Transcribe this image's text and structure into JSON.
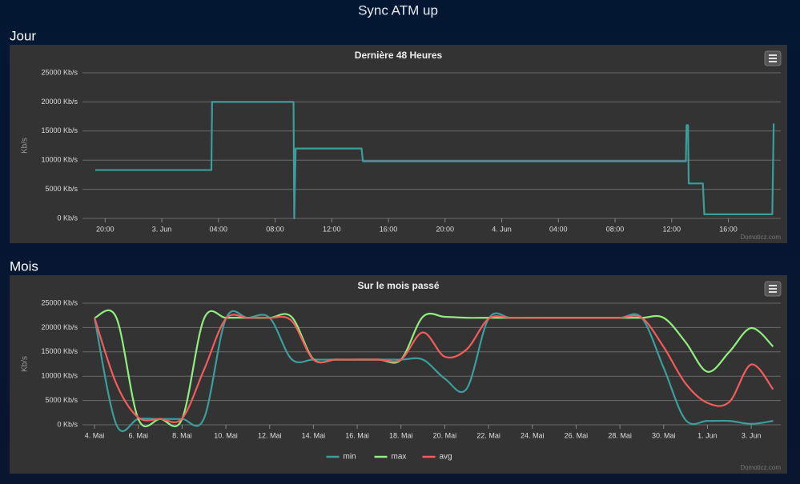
{
  "page": {
    "title": "Sync ATM up",
    "sections": [
      "Jour",
      "Mois"
    ]
  },
  "chart_data": [
    {
      "type": "line",
      "title": "Dernière 48 Heures",
      "y_label": "Kb/s",
      "credits": "Domoticz.com",
      "smooth": false,
      "grid": true,
      "color": "#3a9f9b",
      "x": [
        19.3,
        27.5,
        27.55,
        33.3,
        33.35,
        33.45,
        38.1,
        38.2,
        61.0,
        61.05,
        61.15,
        61.2,
        62.2,
        62.3,
        67.1,
        67.2
      ],
      "values": [
        8300,
        8300,
        20000,
        20000,
        0,
        12000,
        12000,
        9800,
        9800,
        16000,
        16000,
        6000,
        6000,
        700,
        700,
        16300
      ],
      "xlim": [
        18.4,
        67.7
      ],
      "xticks": [
        {
          "value": 20,
          "label": "20:00"
        },
        {
          "value": 24,
          "label": "3. Jun"
        },
        {
          "value": 28,
          "label": "04:00"
        },
        {
          "value": 32,
          "label": "08:00"
        },
        {
          "value": 36,
          "label": "12:00"
        },
        {
          "value": 40,
          "label": "16:00"
        },
        {
          "value": 44,
          "label": "20:00"
        },
        {
          "value": 48,
          "label": "4. Jun"
        },
        {
          "value": 52,
          "label": "04:00"
        },
        {
          "value": 56,
          "label": "08:00"
        },
        {
          "value": 60,
          "label": "12:00"
        },
        {
          "value": 64,
          "label": "16:00"
        }
      ],
      "ylim": [
        0,
        25000
      ],
      "yticks": [
        {
          "value": 0,
          "label": "0 Kb/s"
        },
        {
          "value": 5000,
          "label": "5000 Kb/s"
        },
        {
          "value": 10000,
          "label": "10000 Kb/s"
        },
        {
          "value": 15000,
          "label": "15000 Kb/s"
        },
        {
          "value": 20000,
          "label": "20000 Kb/s"
        },
        {
          "value": 25000,
          "label": "25000 Kb/s"
        }
      ]
    },
    {
      "type": "line",
      "title": "Sur le mois passé",
      "y_label": "Kb/s",
      "credits": "Domoticz.com",
      "smooth": true,
      "grid": true,
      "x": [
        4,
        5,
        6,
        7,
        8,
        9,
        10,
        11,
        12,
        13,
        14,
        15,
        16,
        17,
        18,
        19,
        20,
        21,
        22,
        23,
        24,
        25,
        26,
        27,
        28,
        29,
        30,
        31,
        32,
        33,
        34,
        35
      ],
      "series": [
        {
          "name": "min",
          "color": "#3a9f9b",
          "values": [
            22000,
            0,
            1200,
            1200,
            1200,
            1300,
            21800,
            22000,
            22000,
            13500,
            13400,
            13400,
            13400,
            13400,
            13400,
            13400,
            9500,
            7400,
            21800,
            22000,
            22000,
            22000,
            22000,
            22000,
            22000,
            22000,
            11700,
            1000,
            800,
            800,
            200,
            800
          ]
        },
        {
          "name": "max",
          "color": "#90ee7e",
          "values": [
            22000,
            22000,
            1200,
            1200,
            1200,
            21800,
            22000,
            22000,
            22000,
            22200,
            13500,
            13400,
            13400,
            13400,
            13400,
            22200,
            22200,
            22000,
            22000,
            22000,
            22000,
            22000,
            22000,
            22000,
            22000,
            22000,
            22000,
            17000,
            10900,
            15000,
            19900,
            16100
          ]
        },
        {
          "name": "avg",
          "color": "#f45b5b",
          "values": [
            22000,
            8400,
            1500,
            1200,
            1300,
            11300,
            21800,
            22000,
            22000,
            21400,
            13400,
            13400,
            13400,
            13400,
            13400,
            19000,
            14000,
            15500,
            21800,
            22000,
            22000,
            22000,
            22000,
            22000,
            22000,
            22000,
            16000,
            8500,
            4500,
            4700,
            12400,
            7300
          ]
        }
      ],
      "xlim": [
        3.45,
        35.35
      ],
      "xticks": [
        {
          "value": 4,
          "label": "4. Mai"
        },
        {
          "value": 6,
          "label": "6. Mai"
        },
        {
          "value": 8,
          "label": "8. Mai"
        },
        {
          "value": 10,
          "label": "10. Mai"
        },
        {
          "value": 12,
          "label": "12. Mai"
        },
        {
          "value": 14,
          "label": "14. Mai"
        },
        {
          "value": 16,
          "label": "16. Mai"
        },
        {
          "value": 18,
          "label": "18. Mai"
        },
        {
          "value": 20,
          "label": "20. Mai"
        },
        {
          "value": 22,
          "label": "22. Mai"
        },
        {
          "value": 24,
          "label": "24. Mai"
        },
        {
          "value": 26,
          "label": "26. Mai"
        },
        {
          "value": 28,
          "label": "28. Mai"
        },
        {
          "value": 30,
          "label": "30. Mai"
        },
        {
          "value": 32,
          "label": "1. Jun"
        },
        {
          "value": 34,
          "label": "3. Jun"
        }
      ],
      "ylim": [
        0,
        25000
      ],
      "yticks": [
        {
          "value": 0,
          "label": "0 Kb/s"
        },
        {
          "value": 5000,
          "label": "5000 Kb/s"
        },
        {
          "value": 10000,
          "label": "10000 Kb/s"
        },
        {
          "value": 15000,
          "label": "15000 Kb/s"
        },
        {
          "value": 20000,
          "label": "20000 Kb/s"
        },
        {
          "value": 25000,
          "label": "25000 Kb/s"
        }
      ]
    }
  ]
}
